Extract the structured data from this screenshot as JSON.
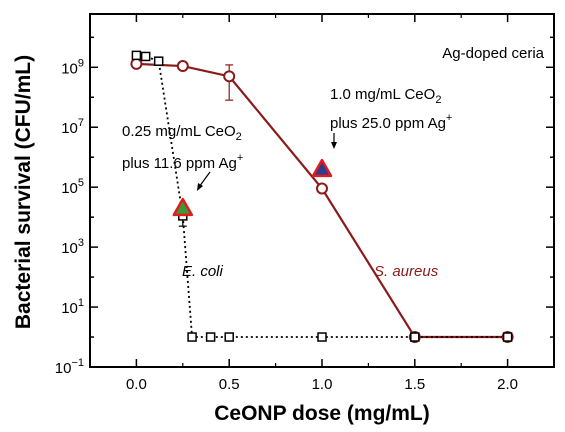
{
  "chart_data": {
    "type": "scatter",
    "title": "",
    "xlabel": "CeONP dose (mg/mL)",
    "ylabel": "Bacterial survival (CFU/mL)",
    "xlim": [
      -0.25,
      2.25
    ],
    "ylim": [
      0.1,
      60000000000.0
    ],
    "y_scale": "log",
    "grid": false,
    "x_ticks": [
      "0.0",
      "0.5",
      "1.0",
      "1.5",
      "2.0"
    ],
    "x_tick_values": [
      0,
      0.5,
      1.0,
      1.5,
      2.0
    ],
    "y_ticks": [
      {
        "value": 0.1,
        "base": "10",
        "exp": "−1"
      },
      {
        "value": 10,
        "base": "10",
        "exp": "1"
      },
      {
        "value": 1000,
        "base": "10",
        "exp": "3"
      },
      {
        "value": 100000,
        "base": "10",
        "exp": "5"
      },
      {
        "value": 10000000,
        "base": "10",
        "exp": "7"
      },
      {
        "value": 1000000000,
        "base": "10",
        "exp": "9"
      }
    ],
    "series": [
      {
        "name": "S. aureus",
        "color": "#8b1a1a",
        "marker": "circle",
        "line": "solid",
        "points": [
          {
            "x": 0.0,
            "y": 1300000000.0
          },
          {
            "x": 0.25,
            "y": 1100000000.0
          },
          {
            "x": 0.5,
            "y": 500000000.0,
            "err_low": 80000000.0,
            "err_high": 1200000000.0
          },
          {
            "x": 1.0,
            "y": 90000.0
          },
          {
            "x": 1.5,
            "y": 1
          },
          {
            "x": 2.0,
            "y": 1
          }
        ]
      },
      {
        "name": "E. coli",
        "color": "#000000",
        "marker": "square",
        "line": "dotted",
        "points": [
          {
            "x": 0.0,
            "y": 2500000000.0
          },
          {
            "x": 0.05,
            "y": 2300000000.0
          },
          {
            "x": 0.12,
            "y": 1600000000.0
          },
          {
            "x": 0.25,
            "y": 11000.0,
            "err_low": 5000.0,
            "err_high": 16000.0
          },
          {
            "x": 0.3,
            "y": 1
          },
          {
            "x": 0.4,
            "y": 1
          },
          {
            "x": 0.5,
            "y": 1
          },
          {
            "x": 1.0,
            "y": 1
          },
          {
            "x": 1.5,
            "y": 1
          },
          {
            "x": 2.0,
            "y": 1
          }
        ]
      }
    ],
    "highlight_points": [
      {
        "x": 0.25,
        "y": 20000.0,
        "outline": "#e41a1c",
        "fill": "#3a9a3a"
      },
      {
        "x": 1.0,
        "y": 400000.0,
        "outline": "#e41a1c",
        "fill": "#2e3c8f"
      }
    ],
    "annotations": {
      "title_inset": "Ag-doped ceria",
      "ann1_line1_pre": "0.25 mg/mL CeO",
      "ann1_line1_sub": "2",
      "ann1_line2_pre": "plus 11.6 ppm Ag",
      "ann1_line2_sup": "+",
      "ann2_line1_pre": "1.0 mg/mL CeO",
      "ann2_line1_sub": "2",
      "ann2_line2_pre": "plus 25.0 ppm Ag",
      "ann2_line2_sup": "+",
      "ecoli_label": "E. coli",
      "saureus_label": "S. aureus"
    }
  }
}
